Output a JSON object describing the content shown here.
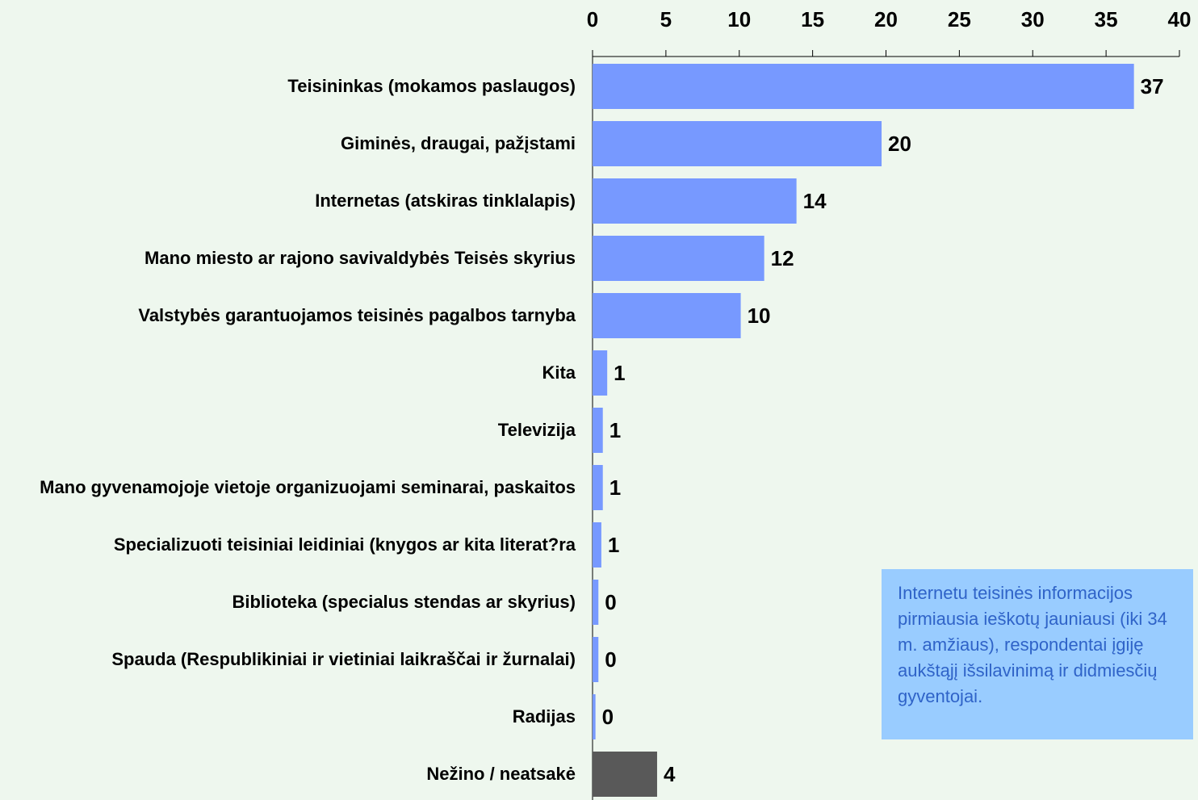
{
  "chart_data": {
    "type": "barh",
    "categories": [
      "Teisininkas  (mokamos paslaugos)",
      "Giminės, draugai, pažįstami",
      "Internetas (atskiras tinklalapis)",
      "Mano miesto ar rajono savivaldybės Teisės skyrius",
      "Valstybės garantuojamos teisinės pagalbos tarnyba",
      "Kita",
      "Televizija",
      "Mano gyvenamojoje vietoje organizuojami seminarai, paskaitos",
      "Specializuoti teisiniai leidiniai (knygos ar kita literat?ra",
      "Biblioteka (specialus stendas ar skyrius)",
      "Spauda (Respublikiniai ir vietiniai laikraščai ir žurnalai)",
      "Radijas",
      "Nežino / neatsakė"
    ],
    "values": [
      36.9,
      19.7,
      13.9,
      11.7,
      10.1,
      1.0,
      0.7,
      0.7,
      0.6,
      0.4,
      0.4,
      0.2,
      4.4
    ],
    "value_labels": [
      "37",
      "20",
      "14",
      "12",
      "10",
      "1",
      "1",
      "1",
      "1",
      "0",
      "0",
      "0",
      "4"
    ],
    "colors": [
      "#7799ff",
      "#7799ff",
      "#7799ff",
      "#7799ff",
      "#7799ff",
      "#7799ff",
      "#7799ff",
      "#7799ff",
      "#7799ff",
      "#7799ff",
      "#7799ff",
      "#7799ff",
      "#595959"
    ],
    "xlim": [
      0,
      40
    ],
    "xticks": [
      0,
      5,
      10,
      15,
      20,
      25,
      30,
      35,
      40
    ],
    "annotation": "Internetu teisinės informacijos pirmiausia ieškotų jauniausi (iki 34 m. amžiaus), respondentai įgiję aukštąjį išsilavinimą ir didmiesčių gyventojai."
  }
}
